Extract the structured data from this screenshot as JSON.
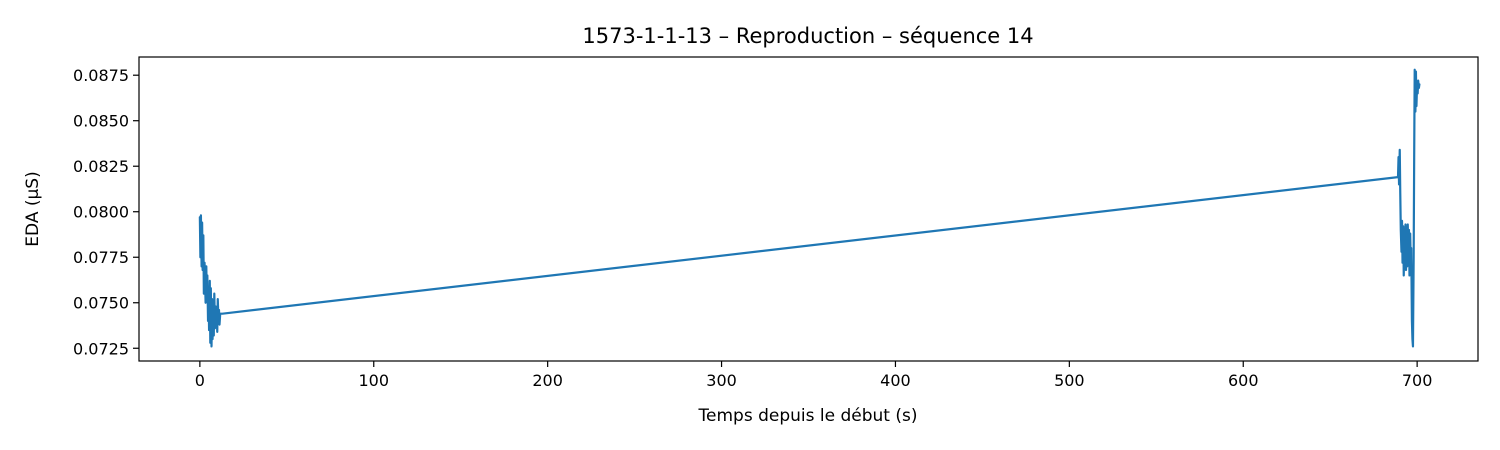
{
  "chart_data": {
    "type": "line",
    "title": "1573-1-1-13 – Reproduction – séquence 14",
    "xlabel": "Temps depuis le début (s)",
    "ylabel": "EDA (µS)",
    "xlim": [
      -35,
      735
    ],
    "ylim": [
      0.0718,
      0.0885
    ],
    "xticks": [
      0,
      100,
      200,
      300,
      400,
      500,
      600,
      700
    ],
    "xtick_labels": [
      "0",
      "100",
      "200",
      "300",
      "400",
      "500",
      "600",
      "700"
    ],
    "yticks": [
      0.0725,
      0.075,
      0.0775,
      0.08,
      0.0825,
      0.085,
      0.0875
    ],
    "ytick_labels": [
      "0.0725",
      "0.0750",
      "0.0775",
      "0.0800",
      "0.0825",
      "0.0850",
      "0.0875"
    ],
    "grid": false,
    "series": [
      {
        "color": "#1f77b4",
        "x": [
          0.0,
          0.3,
          0.6,
          1.0,
          1.3,
          1.6,
          2.0,
          2.3,
          2.7,
          3.0,
          3.3,
          3.7,
          4.0,
          4.3,
          4.7,
          5.0,
          5.3,
          5.7,
          6.0,
          6.3,
          6.7,
          7.0,
          7.3,
          7.7,
          8.0,
          8.3,
          8.7,
          9.0,
          9.3,
          9.7,
          10.0,
          10.3,
          10.7,
          11.0,
          11.3,
          11.7,
          12.0,
          12.5,
          13.0,
          689.0,
          689.3,
          689.6,
          690.0,
          690.3,
          690.6,
          691.0,
          691.3,
          691.6,
          692.0,
          692.3,
          692.6,
          693.0,
          693.3,
          693.6,
          694.0,
          694.3,
          694.6,
          695.0,
          695.3,
          695.6,
          696.0,
          696.3,
          696.6,
          697.0,
          697.3,
          697.6,
          698.0,
          698.3,
          698.6,
          699.0,
          699.3,
          699.6,
          700.0,
          700.3,
          700.6,
          701.0,
          701.3
        ],
        "y": [
          0.0797,
          0.0775,
          0.0798,
          0.077,
          0.0794,
          0.0768,
          0.0787,
          0.0755,
          0.0772,
          0.0762,
          0.075,
          0.077,
          0.0752,
          0.0765,
          0.074,
          0.0755,
          0.0735,
          0.0762,
          0.0728,
          0.0758,
          0.0726,
          0.0752,
          0.073,
          0.0748,
          0.0732,
          0.0755,
          0.0736,
          0.0748,
          0.0738,
          0.0746,
          0.0734,
          0.0752,
          0.074,
          0.0746,
          0.0738,
          0.0744,
          0.0744,
          0.0744,
          0.0744,
          0.0819,
          0.083,
          0.0815,
          0.0834,
          0.081,
          0.079,
          0.0778,
          0.0795,
          0.0772,
          0.0792,
          0.0765,
          0.0788,
          0.077,
          0.0793,
          0.0768,
          0.0785,
          0.077,
          0.0793,
          0.0775,
          0.079,
          0.0765,
          0.0788,
          0.0772,
          0.078,
          0.074,
          0.073,
          0.0726,
          0.0775,
          0.083,
          0.0878,
          0.0855,
          0.0877,
          0.0858,
          0.0871,
          0.0865,
          0.0872,
          0.0868,
          0.087
        ]
      }
    ]
  }
}
